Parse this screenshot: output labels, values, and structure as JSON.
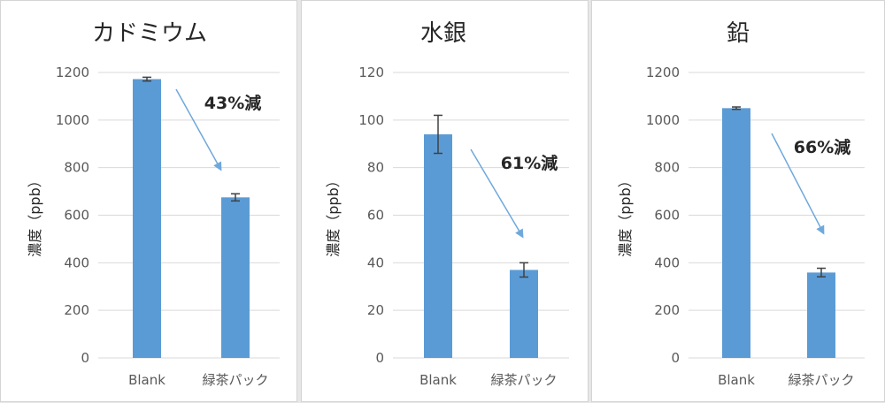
{
  "colors": {
    "bar": "#5b9bd5",
    "arrow": "#6fa8dc",
    "grid": "#d9d9d9",
    "errorbar": "#404040"
  },
  "chart_data": [
    {
      "type": "bar",
      "title": "カドミウム",
      "ylabel": "濃度（ppb）",
      "xlabel": "",
      "categories": [
        "Blank",
        "緑茶パック"
      ],
      "values": [
        1172,
        675
      ],
      "errors": [
        8,
        15
      ],
      "ylim": [
        0,
        1200
      ],
      "yticks": [
        "0",
        "200",
        "400",
        "600",
        "800",
        "1000",
        "1200"
      ],
      "annotation": "43%減",
      "grid": true
    },
    {
      "type": "bar",
      "title": "水銀",
      "ylabel": "濃度（ppb）",
      "xlabel": "",
      "categories": [
        "Blank",
        "緑茶パック"
      ],
      "values": [
        94,
        37
      ],
      "errors": [
        8,
        3
      ],
      "ylim": [
        0,
        120
      ],
      "yticks": [
        "0",
        "20",
        "40",
        "60",
        "80",
        "100",
        "120"
      ],
      "annotation": "61%減",
      "grid": true
    },
    {
      "type": "bar",
      "title": "鉛",
      "ylabel": "濃度（ppb）",
      "xlabel": "",
      "categories": [
        "Blank",
        "緑茶パック"
      ],
      "values": [
        1050,
        359
      ],
      "errors": [
        5,
        18
      ],
      "ylim": [
        0,
        1200
      ],
      "yticks": [
        "0",
        "200",
        "400",
        "600",
        "800",
        "1000",
        "1200"
      ],
      "annotation": "66%減",
      "grid": true
    }
  ]
}
